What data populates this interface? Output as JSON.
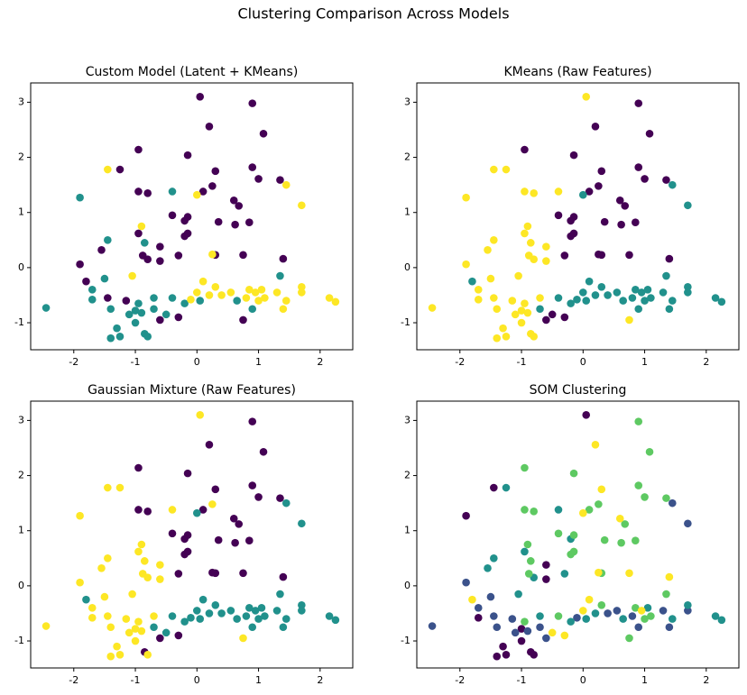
{
  "title": "Clustering Comparison Across Models",
  "chart_data": [
    {
      "type": "scatter",
      "title": "Custom Model (Latent + KMeans)",
      "xlim": [
        -2.7,
        2.53
      ],
      "ylim": [
        -1.49,
        3.35
      ],
      "xticks": [
        -2,
        -1,
        0,
        1,
        2
      ],
      "yticks": [
        -1,
        0,
        1,
        2,
        3
      ],
      "series": [
        {
          "color": "#440154",
          "x": [
            0.05,
            0.9,
            0.2,
            1.08,
            -0.95,
            -1.25,
            -0.15,
            0.3,
            0.9,
            1.0,
            1.35,
            0.25,
            0.1,
            -0.95,
            -0.8,
            0.6,
            0.68,
            -0.15,
            -0.2,
            -0.4,
            0.35,
            0.62,
            0.85,
            -0.95,
            -0.2,
            -0.15,
            -1.55,
            -0.6,
            -0.88,
            -0.8,
            -0.6,
            -0.3,
            0.3,
            0.75,
            1.4,
            -1.9,
            -1.8,
            -1.45,
            -1.15,
            -0.6,
            -0.3,
            0.75
          ],
          "y": [
            3.1,
            2.98,
            2.56,
            2.43,
            2.14,
            1.78,
            2.04,
            1.75,
            1.82,
            1.61,
            1.59,
            1.48,
            1.38,
            1.38,
            1.35,
            1.22,
            1.12,
            0.92,
            0.85,
            0.95,
            0.83,
            0.78,
            0.82,
            0.62,
            0.57,
            0.62,
            0.32,
            0.38,
            0.22,
            0.15,
            0.12,
            0.22,
            0.23,
            0.23,
            0.16,
            0.06,
            -0.25,
            -0.55,
            -0.6,
            -0.95,
            -0.9,
            -0.95
          ]
        },
        {
          "color": "#21918c",
          "x": [
            -0.4,
            -1.9,
            -1.45,
            -0.85,
            -1.5,
            -2.45,
            -1.7,
            -1.7,
            -1.4,
            -1.4,
            -1.25,
            -1.3,
            -1.1,
            -1.0,
            -1.0,
            -0.95,
            -0.9,
            -0.85,
            -0.8,
            -0.7,
            -0.7,
            -0.5,
            -0.4,
            -0.2,
            0.05,
            0.65,
            0.9,
            1.35
          ],
          "y": [
            1.38,
            1.27,
            0.5,
            0.45,
            -0.2,
            -0.73,
            -0.4,
            -0.58,
            -0.75,
            -1.28,
            -1.25,
            -1.1,
            -0.85,
            -0.78,
            -1.0,
            -0.65,
            -0.82,
            -1.2,
            -1.25,
            -0.55,
            -0.75,
            -0.85,
            -0.55,
            -0.65,
            -0.6,
            -0.6,
            -0.75,
            -0.15
          ]
        },
        {
          "color": "#fde725",
          "x": [
            -1.45,
            1.45,
            0.0,
            1.7,
            -0.9,
            0.25,
            -1.05,
            -0.1,
            0.0,
            0.1,
            0.2,
            0.3,
            0.4,
            0.55,
            0.8,
            0.85,
            0.95,
            1.0,
            1.05,
            1.1,
            1.3,
            1.4,
            1.45,
            1.7,
            1.7,
            2.15,
            2.25
          ],
          "y": [
            1.78,
            1.5,
            1.32,
            1.13,
            0.75,
            0.24,
            -0.15,
            -0.58,
            -0.45,
            -0.25,
            -0.5,
            -0.35,
            -0.5,
            -0.45,
            -0.55,
            -0.4,
            -0.45,
            -0.6,
            -0.4,
            -0.55,
            -0.45,
            -0.75,
            -0.6,
            -0.35,
            -0.45,
            -0.55,
            -0.62
          ]
        }
      ]
    },
    {
      "type": "scatter",
      "title": "KMeans (Raw Features)",
      "xlim": [
        -2.7,
        2.53
      ],
      "ylim": [
        -1.49,
        3.35
      ],
      "xticks": [
        -2,
        -1,
        0,
        1,
        2
      ],
      "yticks": [
        -1,
        0,
        1,
        2,
        3
      ],
      "series": [
        {
          "color": "#440154",
          "x": [
            0.9,
            0.2,
            1.08,
            -0.95,
            -0.15,
            0.3,
            0.9,
            1.0,
            1.35,
            0.25,
            0.1,
            0.6,
            0.68,
            -0.15,
            -0.2,
            -0.4,
            0.35,
            0.62,
            0.85,
            -0.2,
            -0.15,
            -0.3,
            0.25,
            0.3,
            0.75,
            1.4,
            -0.6,
            -0.5,
            -0.3
          ],
          "y": [
            2.98,
            2.56,
            2.43,
            2.14,
            2.04,
            1.75,
            1.82,
            1.61,
            1.59,
            1.48,
            1.38,
            1.22,
            1.12,
            0.92,
            0.85,
            0.95,
            0.83,
            0.78,
            0.82,
            0.57,
            0.62,
            0.22,
            0.24,
            0.23,
            0.23,
            0.16,
            -0.95,
            -0.85,
            -0.9
          ]
        },
        {
          "color": "#21918c",
          "x": [
            1.45,
            0.0,
            1.7,
            -1.8,
            -0.7,
            -0.4,
            -0.2,
            -0.1,
            0.0,
            0.05,
            0.1,
            0.2,
            0.3,
            0.4,
            0.55,
            0.65,
            0.8,
            0.85,
            0.9,
            0.95,
            1.0,
            1.05,
            1.1,
            1.3,
            1.35,
            1.4,
            1.45,
            1.7,
            1.7,
            2.15,
            2.25
          ],
          "y": [
            1.5,
            1.32,
            1.13,
            -0.25,
            -0.75,
            -0.55,
            -0.65,
            -0.58,
            -0.45,
            -0.6,
            -0.25,
            -0.5,
            -0.35,
            -0.5,
            -0.45,
            -0.6,
            -0.55,
            -0.4,
            -0.75,
            -0.45,
            -0.6,
            -0.4,
            -0.55,
            -0.45,
            -0.15,
            -0.75,
            -0.6,
            -0.35,
            -0.45,
            -0.55,
            -0.62
          ]
        },
        {
          "color": "#fde725",
          "x": [
            0.05,
            -1.45,
            -1.25,
            -0.95,
            -0.8,
            -0.4,
            -1.9,
            -0.9,
            -1.45,
            -0.95,
            -0.85,
            -1.55,
            -0.6,
            -0.88,
            -0.8,
            -0.6,
            -1.9,
            -1.05,
            -1.5,
            -2.45,
            -1.7,
            -1.7,
            -1.45,
            -1.4,
            -1.4,
            -1.25,
            -1.3,
            -1.15,
            -1.1,
            -1.0,
            -1.0,
            -0.95,
            -0.9,
            -0.85,
            -0.8,
            -0.7,
            0.75
          ],
          "y": [
            3.1,
            1.78,
            1.78,
            1.38,
            1.35,
            1.38,
            1.27,
            0.75,
            0.5,
            0.62,
            0.45,
            0.32,
            0.38,
            0.22,
            0.15,
            0.12,
            0.06,
            -0.15,
            -0.2,
            -0.73,
            -0.4,
            -0.58,
            -0.55,
            -0.75,
            -1.28,
            -1.25,
            -1.1,
            -0.6,
            -0.85,
            -0.78,
            -1.0,
            -0.65,
            -0.82,
            -1.2,
            -1.25,
            -0.55,
            -0.95
          ]
        }
      ]
    },
    {
      "type": "scatter",
      "title": "Gaussian Mixture (Raw Features)",
      "xlim": [
        -2.7,
        2.53
      ],
      "ylim": [
        -1.49,
        3.35
      ],
      "xticks": [
        -2,
        -1,
        0,
        1,
        2
      ],
      "yticks": [
        -1,
        0,
        1,
        2,
        3
      ],
      "series": [
        {
          "color": "#440154",
          "x": [
            0.9,
            0.2,
            1.08,
            -0.95,
            -0.15,
            0.3,
            0.9,
            1.0,
            1.35,
            0.1,
            -0.95,
            -0.8,
            0.6,
            0.68,
            -0.15,
            -0.2,
            -0.4,
            0.35,
            0.62,
            0.85,
            -0.2,
            -0.15,
            -0.3,
            0.25,
            0.3,
            0.75,
            1.4,
            -0.85,
            -0.6,
            -0.3
          ],
          "y": [
            2.98,
            2.56,
            2.43,
            2.14,
            2.04,
            1.75,
            1.82,
            1.61,
            1.59,
            1.38,
            1.38,
            1.35,
            1.22,
            1.12,
            0.92,
            0.85,
            0.95,
            0.83,
            0.78,
            0.82,
            0.57,
            0.62,
            0.22,
            0.24,
            0.23,
            0.23,
            0.16,
            -1.2,
            -0.95,
            -0.9
          ]
        },
        {
          "color": "#21918c",
          "x": [
            1.45,
            0.0,
            1.7,
            -1.8,
            -0.7,
            -0.5,
            -0.4,
            -0.2,
            -0.1,
            0.0,
            0.05,
            0.1,
            0.2,
            0.3,
            0.4,
            0.55,
            0.65,
            0.8,
            0.85,
            0.9,
            0.95,
            1.0,
            1.05,
            1.1,
            1.3,
            1.35,
            1.4,
            1.45,
            1.7,
            1.7,
            2.15,
            2.25
          ],
          "y": [
            1.5,
            1.32,
            1.13,
            -0.25,
            -0.75,
            -0.85,
            -0.55,
            -0.65,
            -0.58,
            -0.45,
            -0.6,
            -0.25,
            -0.5,
            -0.35,
            -0.5,
            -0.45,
            -0.6,
            -0.55,
            -0.4,
            -0.75,
            -0.45,
            -0.6,
            -0.4,
            -0.55,
            -0.45,
            -0.15,
            -0.75,
            -0.6,
            -0.35,
            -0.45,
            -0.55,
            -0.62
          ]
        },
        {
          "color": "#fde725",
          "x": [
            0.05,
            -1.45,
            -1.25,
            0.25,
            -0.4,
            -1.9,
            -0.9,
            -1.45,
            -0.95,
            -0.85,
            -1.55,
            -0.6,
            -0.88,
            -0.8,
            -0.6,
            -1.9,
            -1.05,
            -1.5,
            -2.45,
            -1.7,
            -1.7,
            -1.45,
            -1.4,
            -1.4,
            -1.25,
            -1.3,
            -1.15,
            -1.1,
            -1.0,
            -1.0,
            -0.95,
            -0.9,
            -0.8,
            -0.7,
            0.75
          ],
          "y": [
            3.1,
            1.78,
            1.78,
            1.48,
            1.38,
            1.27,
            0.75,
            0.5,
            0.62,
            0.45,
            0.32,
            0.38,
            0.22,
            0.15,
            0.12,
            0.06,
            -0.15,
            -0.2,
            -0.73,
            -0.4,
            -0.58,
            -0.55,
            -0.75,
            -1.28,
            -1.25,
            -1.1,
            -0.6,
            -0.85,
            -0.78,
            -1.0,
            -0.65,
            -0.82,
            -1.25,
            -0.55,
            -0.95
          ]
        }
      ]
    },
    {
      "type": "scatter",
      "title": "SOM Clustering",
      "xlim": [
        -2.7,
        2.53
      ],
      "ylim": [
        -1.49,
        3.35
      ],
      "xticks": [
        -2,
        -1,
        0,
        1,
        2
      ],
      "yticks": [
        -1,
        0,
        1,
        2,
        3
      ],
      "series": [
        {
          "color": "#440154",
          "x": [
            0.05,
            -1.45,
            -1.9,
            -0.6,
            -0.6,
            -1.7,
            -1.4,
            -1.25,
            -1.3,
            -1.0,
            -1.0,
            -0.85,
            -0.8
          ],
          "y": [
            3.1,
            1.78,
            1.27,
            0.38,
            0.12,
            -0.58,
            -1.28,
            -1.25,
            -1.1,
            -0.78,
            -1.0,
            -1.2,
            -1.25
          ]
        },
        {
          "color": "#3b528b",
          "x": [
            1.45,
            1.7,
            -1.9,
            -1.5,
            -2.45,
            -1.7,
            -1.45,
            -1.4,
            -1.15,
            -1.1,
            -0.9,
            -0.7,
            -0.6,
            -0.1,
            0.4,
            0.55,
            0.8,
            0.9,
            1.3,
            1.4,
            1.7
          ],
          "y": [
            1.5,
            1.13,
            0.06,
            -0.2,
            -0.73,
            -0.4,
            -0.55,
            -0.75,
            -0.6,
            -0.85,
            -0.82,
            -0.75,
            -0.95,
            -0.58,
            -0.5,
            -0.45,
            -0.55,
            -0.75,
            -0.45,
            -0.75,
            -0.45
          ]
        },
        {
          "color": "#21918c",
          "x": [
            -1.25,
            -0.4,
            -0.2,
            -1.45,
            -0.95,
            -1.55,
            -0.8,
            -0.3,
            -1.05,
            -0.7,
            -0.2,
            0.05,
            0.2,
            0.65,
            1.05,
            1.45,
            1.7,
            2.15,
            2.25
          ],
          "y": [
            1.78,
            1.38,
            0.85,
            0.5,
            0.62,
            0.32,
            0.15,
            0.22,
            -0.15,
            -0.55,
            -0.65,
            -0.6,
            -0.5,
            -0.6,
            -0.4,
            -0.6,
            -0.35,
            -0.55,
            -0.62
          ]
        },
        {
          "color": "#5ec962",
          "x": [
            0.9,
            1.08,
            -0.95,
            -0.15,
            0.9,
            1.0,
            1.35,
            0.25,
            0.1,
            -0.95,
            -0.8,
            0.68,
            -0.15,
            -0.4,
            0.35,
            0.62,
            0.85,
            -0.9,
            -0.85,
            -0.2,
            -0.15,
            -0.88,
            0.3,
            -0.95,
            -0.4,
            0.3,
            0.75,
            0.85,
            1.0,
            1.1,
            1.35
          ],
          "y": [
            2.98,
            2.43,
            2.14,
            2.04,
            1.82,
            1.61,
            1.59,
            1.48,
            1.38,
            1.38,
            1.35,
            1.12,
            0.92,
            0.95,
            0.83,
            0.78,
            0.82,
            0.75,
            0.45,
            0.57,
            0.62,
            0.22,
            0.23,
            -0.65,
            -0.55,
            -0.35,
            -0.95,
            -0.4,
            -0.6,
            -0.55,
            -0.15
          ]
        },
        {
          "color": "#fde725",
          "x": [
            0.2,
            0.3,
            0.0,
            0.6,
            0.25,
            0.75,
            1.4,
            -1.8,
            -0.5,
            -0.3,
            0.0,
            0.1,
            0.95
          ],
          "y": [
            2.56,
            1.75,
            1.32,
            1.22,
            0.24,
            0.23,
            0.16,
            -0.25,
            -0.85,
            -0.9,
            -0.45,
            -0.25,
            -0.45
          ]
        }
      ]
    }
  ]
}
